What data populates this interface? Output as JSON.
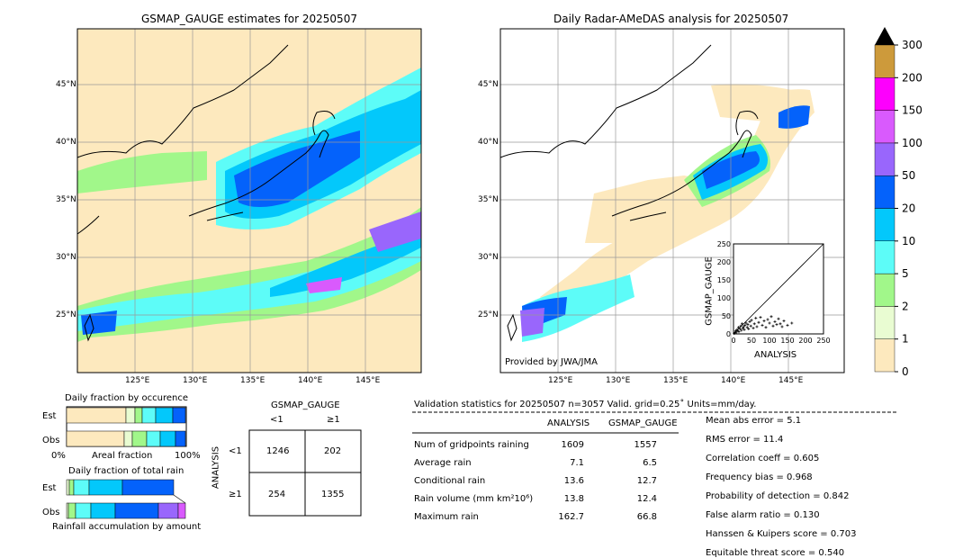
{
  "left_map": {
    "title": "GSMAP_GAUGE estimates for 20250507",
    "lat_ticks": [
      "45°N",
      "40°N",
      "35°N",
      "30°N",
      "25°N"
    ],
    "lon_ticks": [
      "125°E",
      "130°E",
      "135°E",
      "140°E",
      "145°E"
    ]
  },
  "right_map": {
    "title": "Daily Radar-AMeDAS analysis for 20250507",
    "credit": "Provided by JWA/JMA",
    "lat_ticks": [
      "45°N",
      "40°N",
      "35°N",
      "30°N",
      "25°N"
    ],
    "lon_ticks": [
      "125°E",
      "130°E",
      "135°E",
      "140°E",
      "145°E"
    ]
  },
  "colorbar": {
    "labels": [
      "0",
      "1",
      "2",
      "5",
      "10",
      "20",
      "50",
      "100",
      "150",
      "200",
      "300"
    ],
    "colors": [
      "#fde9be",
      "#e9fcd2",
      "#a1f78a",
      "#5dfcf8",
      "#03c8fb",
      "#0462fb",
      "#9966fc",
      "#d95afd",
      "#fd00fd",
      "#cd9a3b"
    ]
  },
  "occurrence": {
    "title": "Daily fraction by occurence",
    "rows": [
      "Est",
      "Obs"
    ],
    "axis_left": "0%",
    "axis_mid": "Areal fraction",
    "axis_right": "100%"
  },
  "total_rain": {
    "title": "Daily fraction of total rain",
    "rows": [
      "Est",
      "Obs"
    ],
    "footer": "Rainfall accumulation by amount"
  },
  "contingency": {
    "top_label": "GSMAP_GAUGE",
    "col_labels": [
      "<1",
      "≥1"
    ],
    "side_label": "ANALYSIS",
    "row_labels": [
      "<1",
      "≥1"
    ],
    "cells": [
      [
        "1246",
        "202"
      ],
      [
        "254",
        "1355"
      ]
    ]
  },
  "validation": {
    "header": "Validation statistics for 20250507  n=3057 Valid. grid=0.25˚ Units=mm/day.",
    "col_analysis": "ANALYSIS",
    "col_gsmap": "GSMAP_GAUGE",
    "rows": [
      {
        "label": "Num of gridpoints raining",
        "analysis": "1609",
        "gsmap": "1557"
      },
      {
        "label": "Average rain",
        "analysis": "7.1",
        "gsmap": "6.5"
      },
      {
        "label": "Conditional rain",
        "analysis": "13.6",
        "gsmap": "12.7"
      },
      {
        "label": "Rain volume (mm km²10⁶)",
        "analysis": "13.8",
        "gsmap": "12.4"
      },
      {
        "label": "Maximum rain",
        "analysis": "162.7",
        "gsmap": "66.8"
      }
    ],
    "scores": [
      "Mean abs error =    5.1",
      "RMS error =   11.4",
      "Correlation coeff =  0.605",
      "Frequency bias =  0.968",
      "Probability of detection =  0.842",
      "False alarm ratio =  0.130",
      "Hanssen & Kuipers score =  0.703",
      "Equitable threat score =  0.540"
    ]
  },
  "chart_data": {
    "type": "scatter",
    "xlabel": "ANALYSIS",
    "ylabel": "GSMAP_GAUGE",
    "xlim": [
      0,
      250
    ],
    "ylim": [
      0,
      250
    ],
    "ticks": [
      "0",
      "50",
      "100",
      "150",
      "200",
      "250"
    ],
    "points": [
      [
        2,
        1
      ],
      [
        4,
        3
      ],
      [
        6,
        8
      ],
      [
        8,
        5
      ],
      [
        10,
        12
      ],
      [
        12,
        9
      ],
      [
        14,
        18
      ],
      [
        15,
        6
      ],
      [
        18,
        14
      ],
      [
        20,
        22
      ],
      [
        22,
        10
      ],
      [
        24,
        28
      ],
      [
        26,
        16
      ],
      [
        28,
        20
      ],
      [
        30,
        12
      ],
      [
        32,
        24
      ],
      [
        35,
        30
      ],
      [
        38,
        18
      ],
      [
        40,
        26
      ],
      [
        42,
        14
      ],
      [
        45,
        34
      ],
      [
        48,
        22
      ],
      [
        50,
        38
      ],
      [
        55,
        16
      ],
      [
        58,
        28
      ],
      [
        62,
        44
      ],
      [
        65,
        20
      ],
      [
        70,
        32
      ],
      [
        75,
        46
      ],
      [
        80,
        24
      ],
      [
        85,
        36
      ],
      [
        90,
        18
      ],
      [
        95,
        40
      ],
      [
        100,
        30
      ],
      [
        105,
        48
      ],
      [
        110,
        22
      ],
      [
        115,
        34
      ],
      [
        120,
        26
      ],
      [
        125,
        42
      ],
      [
        130,
        28
      ],
      [
        135,
        20
      ],
      [
        140,
        36
      ],
      [
        150,
        24
      ],
      [
        162,
        30
      ]
    ]
  }
}
